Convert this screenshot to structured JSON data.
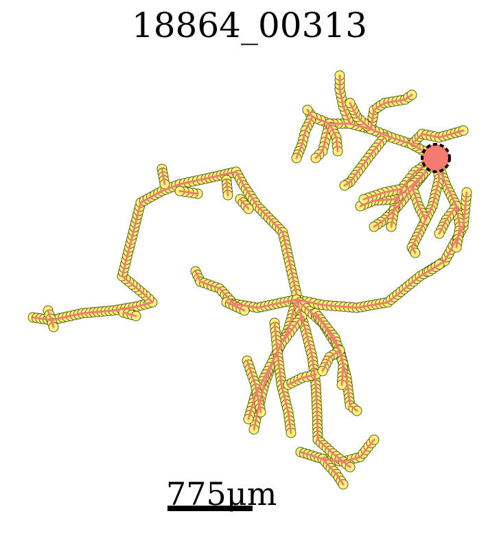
{
  "figure": {
    "title": "18864_00313",
    "scale_label": "775μm"
  },
  "colors": {
    "path": "#f47c6e",
    "node_fill": "#fff27a",
    "node_edge": "#5a5a1a",
    "soma": "#000000",
    "background": "#ffffff"
  }
}
